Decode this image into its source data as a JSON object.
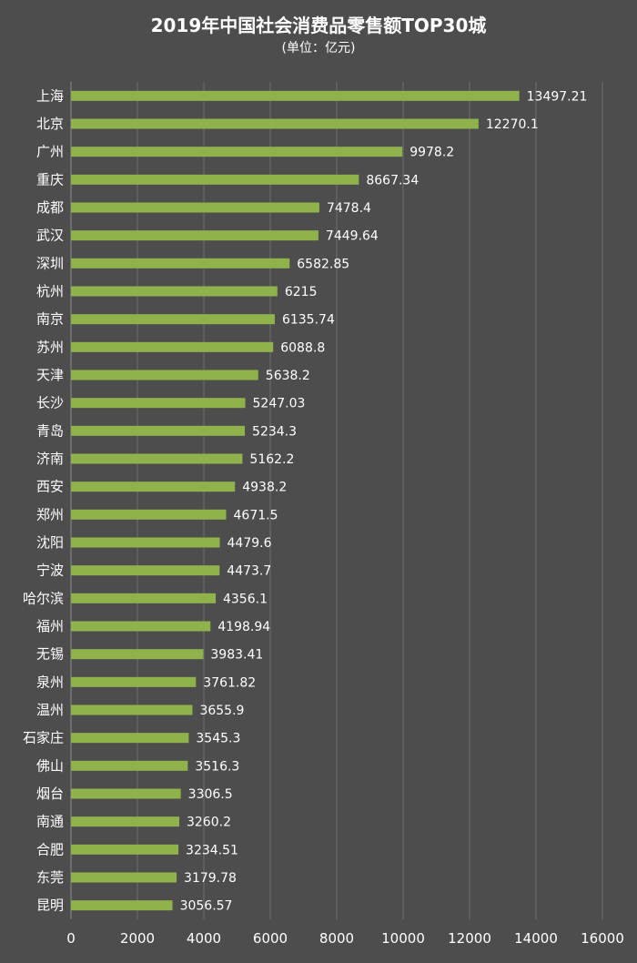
{
  "chart_data": {
    "type": "bar",
    "orientation": "horizontal",
    "title": "2019年中国社会消费品零售额TOP30城",
    "subtitle": "(单位：亿元)",
    "categories": [
      "上海",
      "北京",
      "广州",
      "重庆",
      "成都",
      "武汉",
      "深圳",
      "杭州",
      "南京",
      "苏州",
      "天津",
      "长沙",
      "青岛",
      "济南",
      "西安",
      "郑州",
      "沈阳",
      "宁波",
      "哈尔滨",
      "福州",
      "无锡",
      "泉州",
      "温州",
      "石家庄",
      "佛山",
      "烟台",
      "南通",
      "合肥",
      "东莞",
      "昆明"
    ],
    "values": [
      13497.21,
      12270.1,
      9978.2,
      8667.34,
      7478.4,
      7449.64,
      6582.85,
      6215,
      6135.74,
      6088.8,
      5638.2,
      5247.03,
      5234.3,
      5162.2,
      4938.2,
      4671.5,
      4479.6,
      4473.7,
      4356.1,
      4198.94,
      3983.41,
      3761.82,
      3655.9,
      3545.3,
      3516.3,
      3306.5,
      3260.2,
      3234.51,
      3179.78,
      3056.57
    ],
    "value_labels": [
      "13497.21",
      "12270.1",
      "9978.2",
      "8667.34",
      "7478.4",
      "7449.64",
      "6582.85",
      "6215",
      "6135.74",
      "6088.8",
      "5638.2",
      "5247.03",
      "5234.3",
      "5162.2",
      "4938.2",
      "4671.5",
      "4479.6",
      "4473.7",
      "4356.1",
      "4198.94",
      "3983.41",
      "3761.82",
      "3655.9",
      "3545.3",
      "3516.3",
      "3306.5",
      "3260.2",
      "3234.51",
      "3179.78",
      "3056.57"
    ],
    "xlim": [
      0,
      16000
    ],
    "xticks": [
      "0",
      "2000",
      "4000",
      "6000",
      "8000",
      "10000",
      "12000",
      "14000",
      "16000"
    ],
    "grid": true,
    "bar_color": "#8fb24a",
    "background_color": "#4d4d4d"
  }
}
